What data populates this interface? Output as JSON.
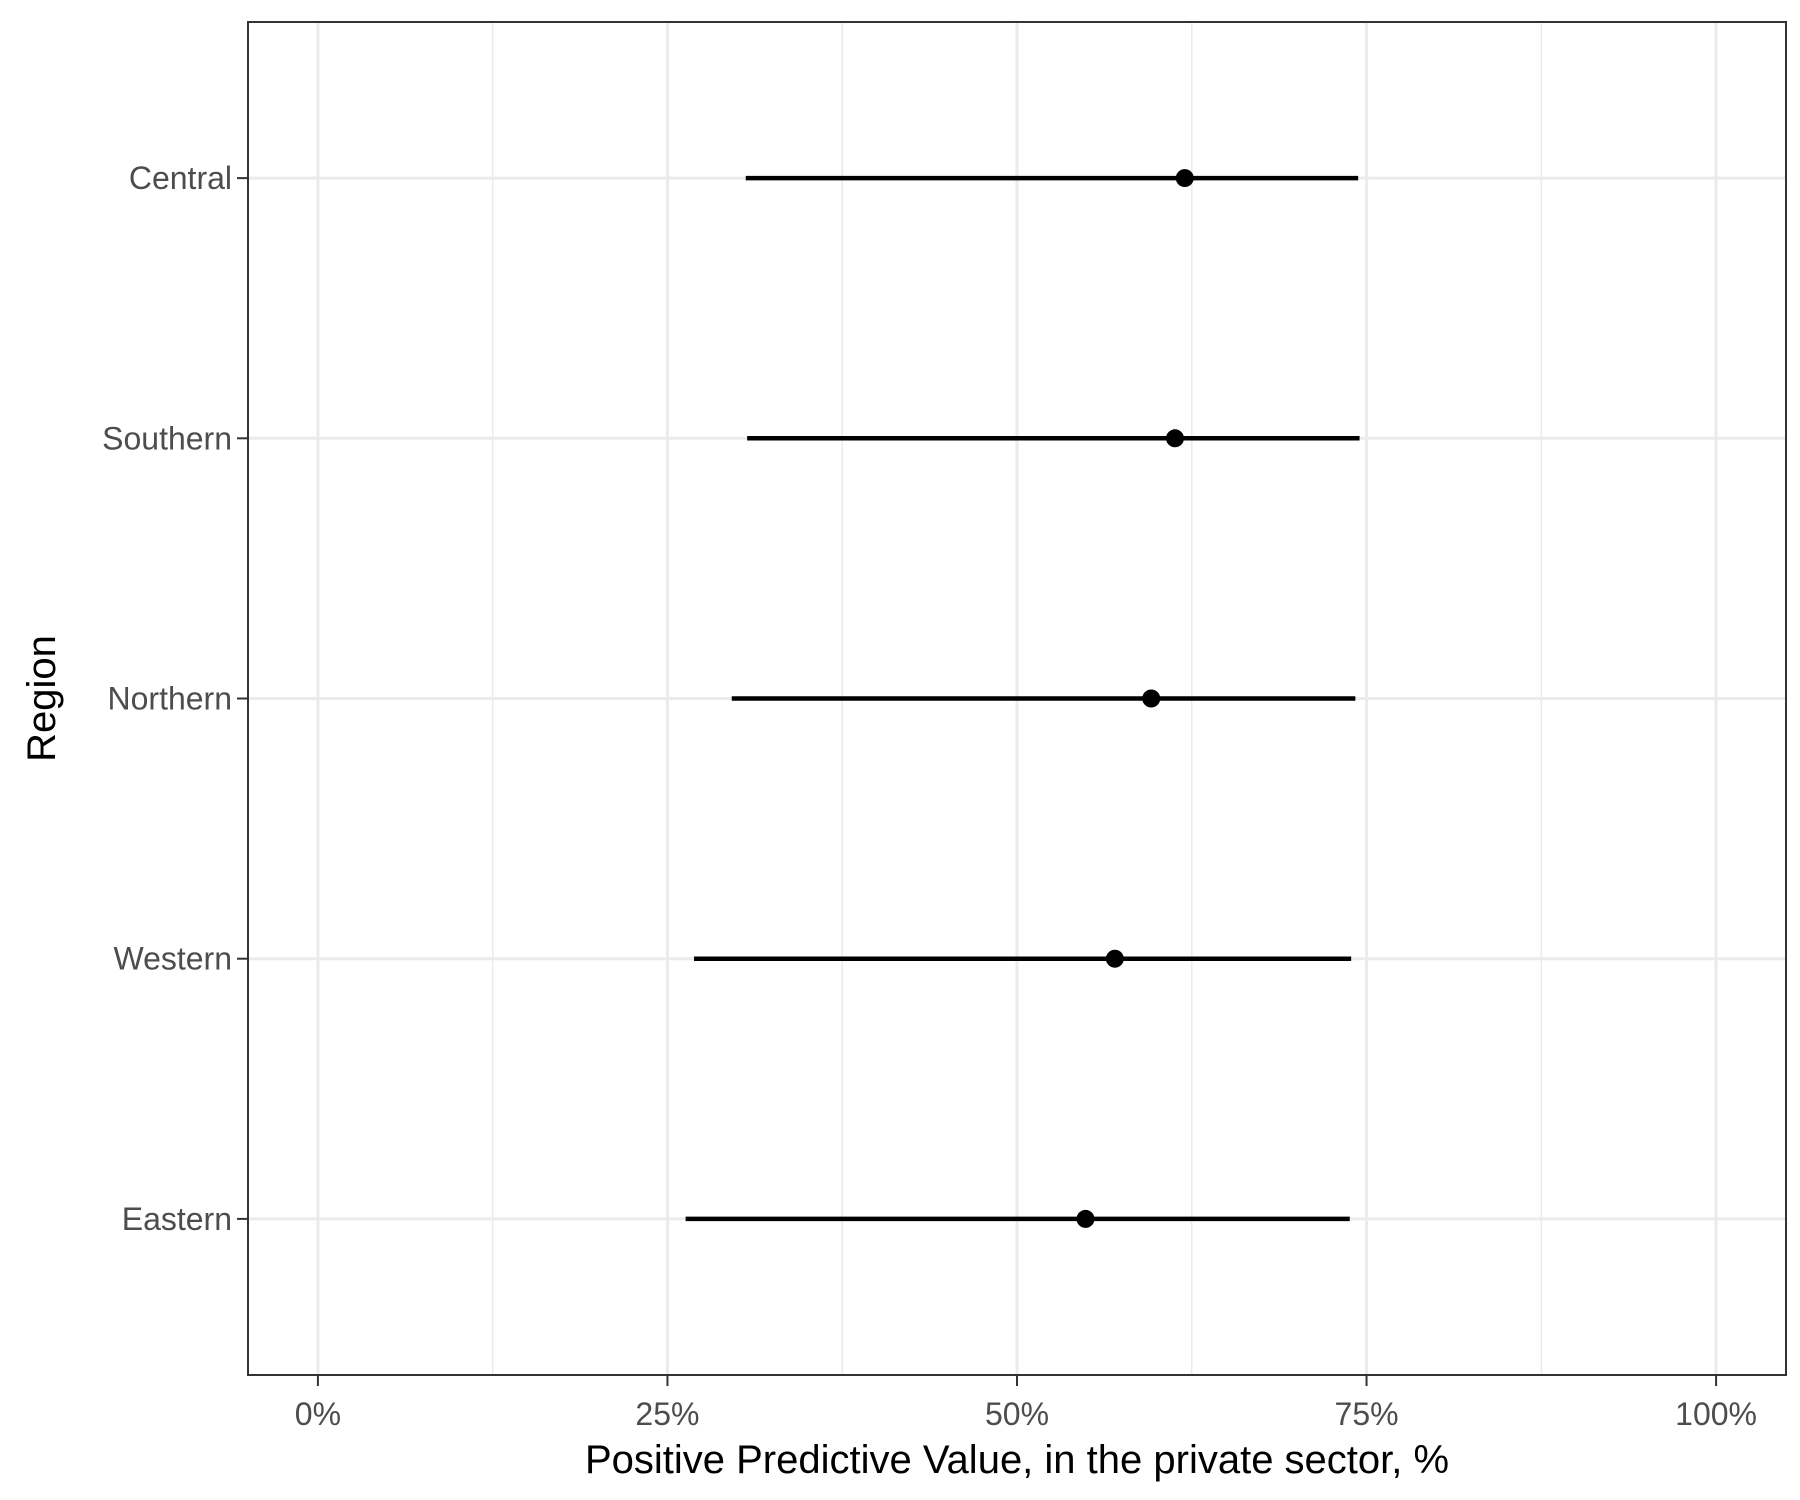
{
  "chart_data": {
    "type": "errorbar",
    "orientation": "horizontal",
    "categories": [
      "Central",
      "Southern",
      "Northern",
      "Western",
      "Eastern"
    ],
    "estimates": [
      62.0,
      61.3,
      59.6,
      57.0,
      54.9
    ],
    "lower": [
      30.6,
      30.7,
      29.6,
      26.9,
      26.3
    ],
    "upper": [
      74.4,
      74.5,
      74.2,
      73.9,
      73.8
    ],
    "xlabel": "Positive Predictive Value, in the private sector, %",
    "ylabel": "Region",
    "xlim": [
      -5,
      105
    ],
    "xticks": [
      0,
      25,
      50,
      75,
      100
    ],
    "xtick_labels": [
      "0%",
      "25%",
      "50%",
      "75%",
      "100%"
    ],
    "grid": true,
    "legend": "none",
    "colors": {
      "marks": "#000000",
      "grid": "#ebebeb",
      "panel_border": "#333333",
      "tick_label": "#4d4d4d",
      "background": "#ffffff"
    }
  }
}
